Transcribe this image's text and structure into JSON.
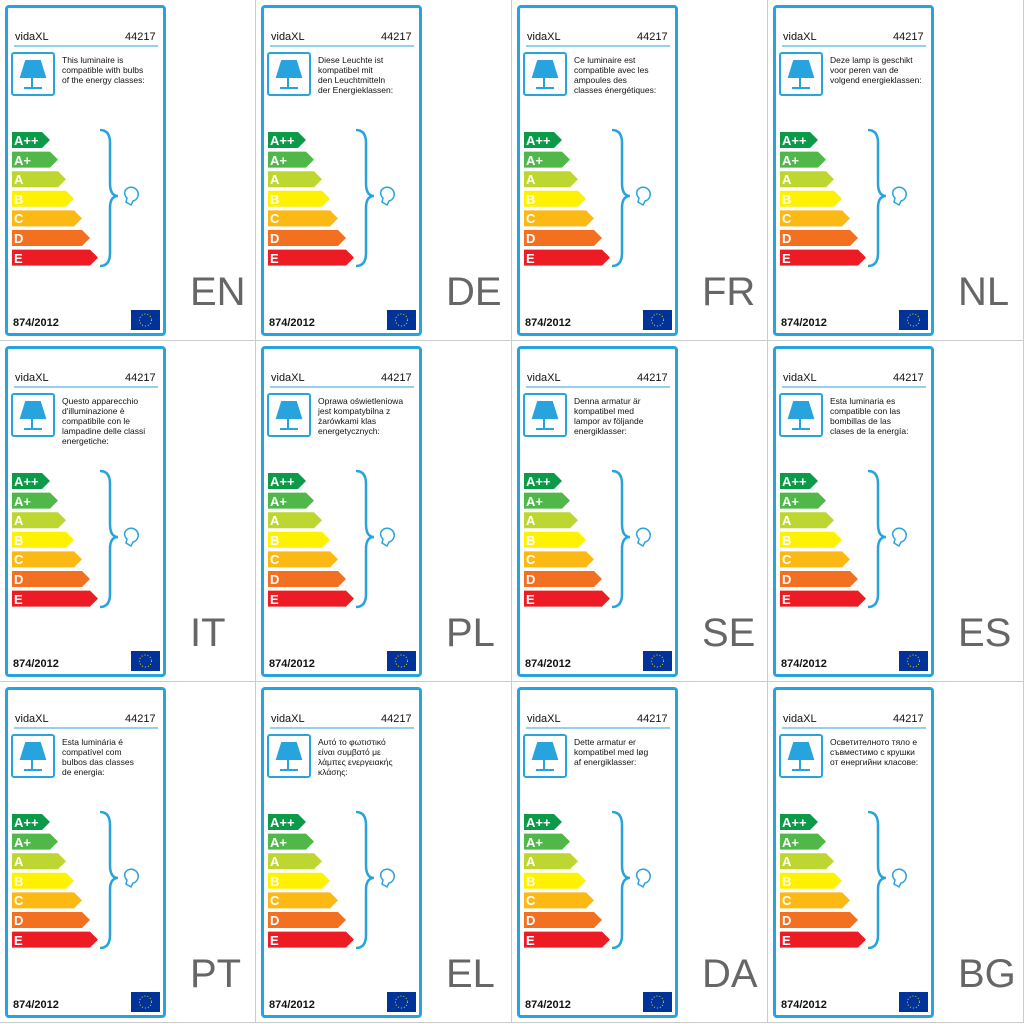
{
  "energy_classes": [
    "A++",
    "A+",
    "A",
    "B",
    "C",
    "D",
    "E"
  ],
  "panels": [
    {
      "brand": "vidaXL",
      "model": "44217",
      "text": "This luminaire is\ncompatible with bulbs\nof the energy classes:",
      "regulation": "874/2012",
      "language": "EN"
    },
    {
      "brand": "vidaXL",
      "model": "44217",
      "text": "Diese Leuchte ist\nkompatibel mit\nden Leuchtmitteln\nder Energieklassen:",
      "regulation": "874/2012",
      "language": "DE"
    },
    {
      "brand": "vidaXL",
      "model": "44217",
      "text": "Ce luminaire est\ncompatible avec les\nampoules des\nclasses énergétiques:",
      "regulation": "874/2012",
      "language": "FR"
    },
    {
      "brand": "vidaXL",
      "model": "44217",
      "text": "Deze lamp is geschikt\nvoor peren van de\nvolgend energieklassen:",
      "regulation": "874/2012",
      "language": "NL"
    },
    {
      "brand": "vidaXL",
      "model": "44217",
      "text": "Questo apparecchio\nd'illuminazione è\ncompatibile con le\nlampadine delle classi\nenergetiche:",
      "regulation": "874/2012",
      "language": "IT"
    },
    {
      "brand": "vidaXL",
      "model": "44217",
      "text": "Oprawa oświetleniowa\njest kompatybilna z\nżarówkami klas\nenergetycznych:",
      "regulation": "874/2012",
      "language": "PL"
    },
    {
      "brand": "vidaXL",
      "model": "44217",
      "text": "Denna armatur är\nkompatibel med\nlampor av följande\nenergiklasser:",
      "regulation": "874/2012",
      "language": "SE"
    },
    {
      "brand": "vidaXL",
      "model": "44217",
      "text": "Esta luminaria es\ncompatible con las\nbombillas de las\nclases de la energía:",
      "regulation": "874/2012",
      "language": "ES"
    },
    {
      "brand": "vidaXL",
      "model": "44217",
      "text": "Esta luminária é\ncompatível com\nbulbos das classes\nde energia:",
      "regulation": "874/2012",
      "language": "PT"
    },
    {
      "brand": "vidaXL",
      "model": "44217",
      "text": "Αυτό το φωτιστικό\nείναι συμβατό με\nλάμπες ενεργειακής\nκλάσης:",
      "regulation": "874/2012",
      "language": "EL"
    },
    {
      "brand": "vidaXL",
      "model": "44217",
      "text": "Dette armatur er\nkompatibel med løg\naf energiklasser:",
      "regulation": "874/2012",
      "language": "DA"
    },
    {
      "brand": "vidaXL",
      "model": "44217",
      "text": "Осветителното тяло е\nсъвместимо с крушки\nот енергийни класове:",
      "regulation": "874/2012",
      "language": "BG"
    }
  ]
}
